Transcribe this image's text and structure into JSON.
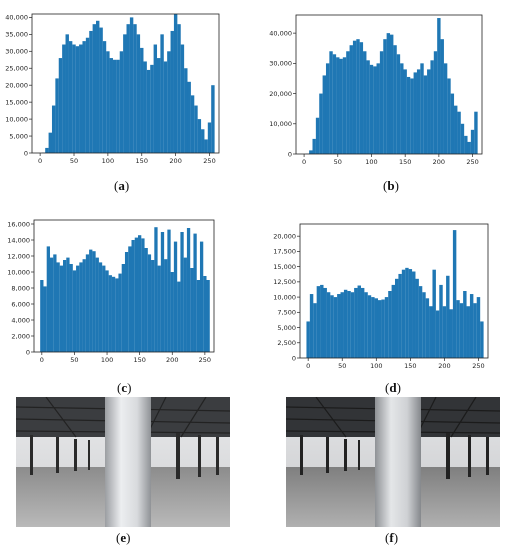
{
  "bar_color": "#1f77b4",
  "captions": {
    "a": [
      "(",
      "a",
      ")"
    ],
    "b": [
      "(",
      "b",
      ")"
    ],
    "c": [
      "(",
      "c",
      ")"
    ],
    "d": [
      "(",
      "d",
      ")"
    ],
    "e": [
      "(",
      "e",
      ")"
    ],
    "f": [
      "(",
      "f",
      ")"
    ]
  },
  "chart_data": [
    {
      "id": "a",
      "type": "bar",
      "xlim": [
        -12,
        264
      ],
      "ylim": [
        0,
        41000
      ],
      "xticks": [
        0,
        50,
        100,
        150,
        200,
        250
      ],
      "yticks": [
        0,
        5000,
        10000,
        15000,
        20000,
        25000,
        30000,
        35000,
        40000
      ],
      "ytick_labels": [
        "0",
        "5,000",
        "10,000",
        "15,000",
        "20,000",
        "25,000",
        "30,000",
        "35,000",
        "40,000"
      ],
      "x": [
        0,
        5,
        10,
        15,
        20,
        25,
        30,
        35,
        40,
        45,
        50,
        55,
        60,
        65,
        70,
        75,
        80,
        85,
        90,
        95,
        100,
        105,
        110,
        115,
        120,
        125,
        130,
        135,
        140,
        145,
        150,
        155,
        160,
        165,
        170,
        175,
        180,
        185,
        190,
        195,
        200,
        205,
        210,
        215,
        220,
        225,
        230,
        235,
        240,
        245,
        250,
        255
      ],
      "values": [
        0,
        100,
        1500,
        6000,
        14000,
        22000,
        28000,
        32000,
        35000,
        33000,
        32000,
        31500,
        32000,
        33000,
        34000,
        36000,
        38000,
        39000,
        37000,
        33000,
        30000,
        28000,
        27500,
        27500,
        30000,
        35000,
        38000,
        40000,
        38000,
        35000,
        31000,
        27000,
        24500,
        26000,
        32000,
        28000,
        35000,
        27000,
        30000,
        36000,
        41000,
        38000,
        32000,
        25000,
        21000,
        17000,
        14000,
        10000,
        7000,
        4000,
        9000,
        20000
      ]
    },
    {
      "id": "b",
      "type": "bar",
      "xlim": [
        -12,
        264
      ],
      "ylim": [
        0,
        46000
      ],
      "xticks": [
        0,
        50,
        100,
        150,
        200,
        250
      ],
      "yticks": [
        0,
        10000,
        20000,
        30000,
        40000
      ],
      "ytick_labels": [
        "0",
        "10,000",
        "20,000",
        "30,000",
        "40,000"
      ],
      "x": [
        0,
        5,
        10,
        15,
        20,
        25,
        30,
        35,
        40,
        45,
        50,
        55,
        60,
        65,
        70,
        75,
        80,
        85,
        90,
        95,
        100,
        105,
        110,
        115,
        120,
        125,
        130,
        135,
        140,
        145,
        150,
        155,
        160,
        165,
        170,
        175,
        180,
        185,
        190,
        195,
        200,
        205,
        210,
        215,
        220,
        225,
        230,
        235,
        240,
        245,
        250,
        255
      ],
      "values": [
        0,
        100,
        1200,
        5000,
        12000,
        20000,
        26000,
        30000,
        34000,
        33000,
        32000,
        31500,
        32000,
        34000,
        36000,
        37500,
        38000,
        37000,
        34000,
        31000,
        29500,
        29000,
        30000,
        34000,
        38000,
        40000,
        39500,
        36000,
        33000,
        30000,
        28000,
        25500,
        25000,
        27000,
        28000,
        30000,
        26000,
        28000,
        31000,
        34000,
        45000,
        38000,
        30000,
        25000,
        20000,
        16000,
        14000,
        10000,
        6000,
        4000,
        8000,
        14000
      ]
    },
    {
      "id": "c",
      "type": "bar",
      "xlim": [
        -12,
        264
      ],
      "ylim": [
        0,
        16500
      ],
      "xticks": [
        0,
        50,
        100,
        150,
        200,
        250
      ],
      "yticks": [
        0,
        2000,
        4000,
        6000,
        8000,
        10000,
        12000,
        14000,
        16000
      ],
      "ytick_labels": [
        "0",
        "2,000",
        "4,000",
        "6,000",
        "8,000",
        "10,000",
        "12,000",
        "14,000",
        "16,000"
      ],
      "x": [
        0,
        5,
        10,
        15,
        20,
        25,
        30,
        35,
        40,
        45,
        50,
        55,
        60,
        65,
        70,
        75,
        80,
        85,
        90,
        95,
        100,
        105,
        110,
        115,
        120,
        125,
        130,
        135,
        140,
        145,
        150,
        155,
        160,
        165,
        170,
        175,
        180,
        185,
        190,
        195,
        200,
        205,
        210,
        215,
        220,
        225,
        230,
        235,
        240,
        245,
        250,
        255
      ],
      "values": [
        9000,
        8200,
        13200,
        11800,
        12200,
        11200,
        10800,
        11500,
        11800,
        11000,
        10200,
        10800,
        11200,
        11600,
        12200,
        12800,
        12600,
        11800,
        11200,
        10800,
        10200,
        9600,
        9400,
        9200,
        9800,
        11000,
        12500,
        13200,
        14000,
        14300,
        14600,
        14200,
        13000,
        12200,
        11500,
        15600,
        10800,
        15000,
        11600,
        15300,
        10000,
        13800,
        8800,
        15000,
        11800,
        15500,
        10500,
        14800,
        9000,
        13800,
        9500,
        9000
      ]
    },
    {
      "id": "d",
      "type": "bar",
      "xlim": [
        -12,
        264
      ],
      "ylim": [
        0,
        22000
      ],
      "xticks": [
        0,
        50,
        100,
        150,
        200,
        250
      ],
      "yticks": [
        0,
        2500,
        5000,
        7500,
        10000,
        12500,
        15000,
        17500,
        20000
      ],
      "ytick_labels": [
        "0",
        "2,500",
        "5,000",
        "7,500",
        "10,000",
        "12,500",
        "15,000",
        "17,500",
        "20,000"
      ],
      "x": [
        0,
        5,
        10,
        15,
        20,
        25,
        30,
        35,
        40,
        45,
        50,
        55,
        60,
        65,
        70,
        75,
        80,
        85,
        90,
        95,
        100,
        105,
        110,
        115,
        120,
        125,
        130,
        135,
        140,
        145,
        150,
        155,
        160,
        165,
        170,
        175,
        180,
        185,
        190,
        195,
        200,
        205,
        210,
        215,
        220,
        225,
        230,
        235,
        240,
        245,
        250,
        255
      ],
      "values": [
        6000,
        10500,
        9000,
        11800,
        12000,
        11500,
        10800,
        10300,
        10000,
        10500,
        10800,
        11200,
        11000,
        10800,
        11500,
        11900,
        11500,
        10800,
        10300,
        10000,
        9800,
        9500,
        9600,
        10000,
        11000,
        12000,
        13000,
        13800,
        14500,
        14800,
        14600,
        14200,
        13000,
        11800,
        10800,
        9800,
        8500,
        14500,
        7800,
        12000,
        8500,
        13500,
        8000,
        21000,
        9500,
        9000,
        11000,
        8500,
        10500,
        9000,
        10000,
        6000
      ]
    }
  ]
}
